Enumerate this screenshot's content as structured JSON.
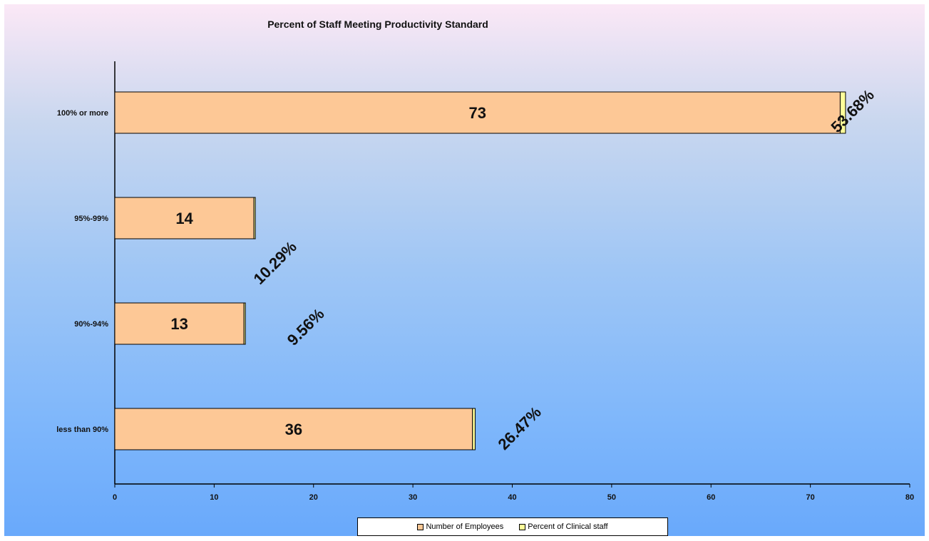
{
  "chart_data": {
    "type": "bar",
    "orientation": "horizontal",
    "stacked": true,
    "title": "Percent of Staff Meeting Productivity Standard",
    "categories": [
      "100% or more",
      "95%-99%",
      "90%-94%",
      "less than 90%"
    ],
    "series": [
      {
        "name": "Number of Employees",
        "values": [
          73,
          14,
          13,
          36
        ],
        "color": "#fdc896"
      },
      {
        "name": "Percent of Clinical staff",
        "values": [
          0.5368,
          0.1029,
          0.0956,
          0.2647
        ],
        "color": "#ffff99"
      }
    ],
    "value_labels": [
      "73",
      "14",
      "13",
      "36"
    ],
    "percent_labels": [
      "53.68%",
      "10.29%",
      "9.56%",
      "26.47%"
    ],
    "x_ticks": [
      "0",
      "10",
      "20",
      "30",
      "40",
      "50",
      "60",
      "70",
      "80"
    ],
    "xlim": [
      0,
      80
    ],
    "grid": false,
    "legend_position": "bottom"
  },
  "colors": {
    "bar_fill": "#fdc896",
    "pct_fill": "#ffff99",
    "axis": "#000000"
  }
}
